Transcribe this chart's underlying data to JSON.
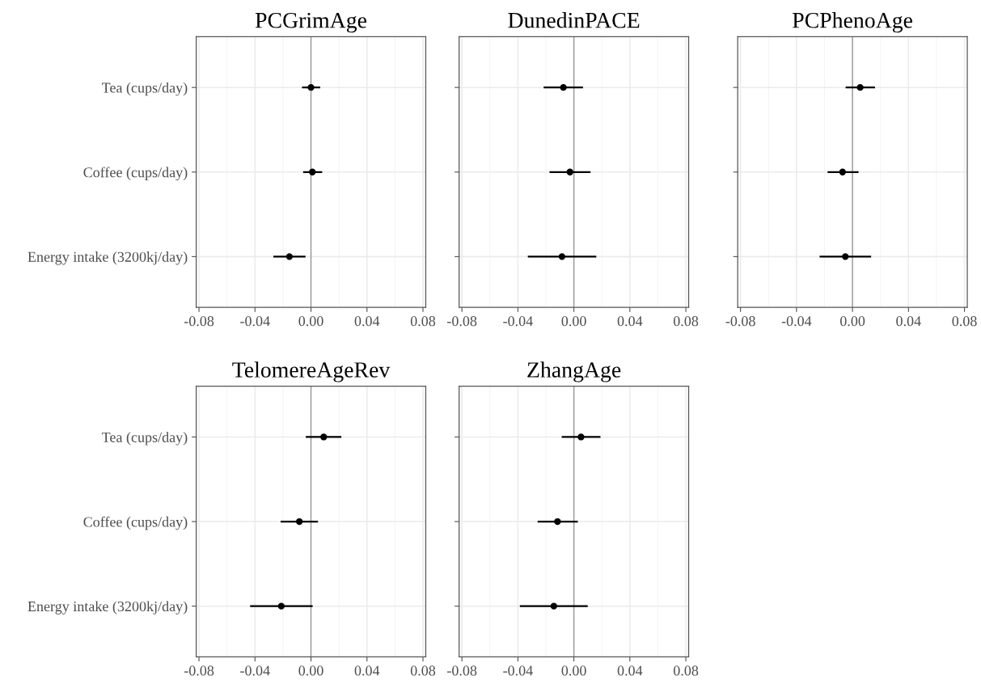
{
  "chart_data": [
    {
      "type": "scatter",
      "title": "PCGrimAge",
      "orientation": "horizontal",
      "categories": [
        "Tea (cups/day)",
        "Coffee (cups/day)",
        "Energy intake (3200kj/day)"
      ],
      "values": [
        0.0,
        0.001,
        -0.0154
      ],
      "errors": [
        [
          -0.0064,
          0.0066
        ],
        [
          -0.0056,
          0.008
        ],
        [
          -0.0269,
          -0.0039
        ]
      ],
      "color": "#000000",
      "xlim": [
        -0.082,
        0.082
      ],
      "xticks": [
        {
          "value": -0.08,
          "label": "-0.08"
        },
        {
          "value": -0.04,
          "label": "-0.04"
        },
        {
          "value": 0,
          "label": "0.00"
        },
        {
          "value": 0.04,
          "label": "0.04"
        },
        {
          "value": 0.08,
          "label": "0.08"
        }
      ],
      "ref_lines": [
        {
          "axis": "x",
          "value": 0,
          "color": "#999999"
        }
      ],
      "grid": true,
      "marker": "circle"
    },
    {
      "type": "scatter",
      "title": "DunedinPACE",
      "orientation": "horizontal",
      "categories": [
        null,
        null,
        null
      ],
      "values": [
        -0.0075,
        -0.0028,
        -0.0085
      ],
      "errors": [
        [
          -0.0216,
          0.0065
        ],
        [
          -0.0174,
          0.0119
        ],
        [
          -0.0329,
          0.016
        ]
      ],
      "color": "#000000",
      "xlim": [
        -0.082,
        0.082
      ],
      "xticks": [
        {
          "value": -0.08,
          "label": "-0.08"
        },
        {
          "value": -0.04,
          "label": "-0.04"
        },
        {
          "value": 0,
          "label": "0.00"
        },
        {
          "value": 0.04,
          "label": "0.04"
        },
        {
          "value": 0.08,
          "label": "0.08"
        }
      ],
      "ref_lines": [
        {
          "axis": "x",
          "value": 0,
          "color": "#999999"
        }
      ],
      "grid": true,
      "marker": "circle",
      "tick_labels": "x"
    },
    {
      "type": "scatter",
      "title": "PCPhenoAge",
      "orientation": "horizontal",
      "categories": [
        null,
        null,
        null
      ],
      "values": [
        0.0055,
        -0.0071,
        -0.0051
      ],
      "errors": [
        [
          -0.0049,
          0.0161
        ],
        [
          -0.0178,
          0.0043
        ],
        [
          -0.0235,
          0.0133
        ]
      ],
      "color": "#000000",
      "xlim": [
        -0.082,
        0.082
      ],
      "xticks": [
        {
          "value": -0.08,
          "label": "-0.08"
        },
        {
          "value": -0.04,
          "label": "-0.04"
        },
        {
          "value": 0,
          "label": "0.00"
        },
        {
          "value": 0.04,
          "label": "0.04"
        },
        {
          "value": 0.08,
          "label": "0.08"
        }
      ],
      "ref_lines": [
        {
          "axis": "x",
          "value": 0,
          "color": "#999999"
        }
      ],
      "grid": true,
      "marker": "circle",
      "tick_labels": "x"
    },
    {
      "type": "scatter",
      "title": "TelomereAgeRev",
      "orientation": "horizontal",
      "categories": [
        "Tea (cups/day)",
        "Coffee (cups/day)",
        "Energy intake (3200kj/day)"
      ],
      "values": [
        0.0091,
        -0.0083,
        -0.0212
      ],
      "errors": [
        [
          -0.0037,
          0.0217
        ],
        [
          -0.0217,
          0.005
        ],
        [
          -0.0435,
          0.0012
        ]
      ],
      "color": "#000000",
      "xlim": [
        -0.082,
        0.082
      ],
      "xticks": [
        {
          "value": -0.08,
          "label": "-0.08"
        },
        {
          "value": -0.04,
          "label": "-0.04"
        },
        {
          "value": 0,
          "label": "0.00"
        },
        {
          "value": 0.04,
          "label": "0.04"
        },
        {
          "value": 0.08,
          "label": "0.08"
        }
      ],
      "ref_lines": [
        {
          "axis": "x",
          "value": 0,
          "color": "#999999"
        }
      ],
      "grid": true,
      "marker": "circle"
    },
    {
      "type": "scatter",
      "title": "ZhangAge",
      "orientation": "horizontal",
      "categories": [
        null,
        null,
        null
      ],
      "values": [
        0.0051,
        -0.0117,
        -0.0143
      ],
      "errors": [
        [
          -0.0087,
          0.019
        ],
        [
          -0.0259,
          0.0028
        ],
        [
          -0.0386,
          0.0099
        ]
      ],
      "color": "#000000",
      "xlim": [
        -0.082,
        0.082
      ],
      "xticks": [
        {
          "value": -0.08,
          "label": "-0.08"
        },
        {
          "value": -0.04,
          "label": "-0.04"
        },
        {
          "value": 0,
          "label": "0.00"
        },
        {
          "value": 0.04,
          "label": "0.04"
        },
        {
          "value": 0.08,
          "label": "0.08"
        }
      ],
      "ref_lines": [
        {
          "axis": "x",
          "value": 0,
          "color": "#999999"
        }
      ],
      "grid": true,
      "marker": "circle",
      "tick_labels": "x"
    }
  ]
}
